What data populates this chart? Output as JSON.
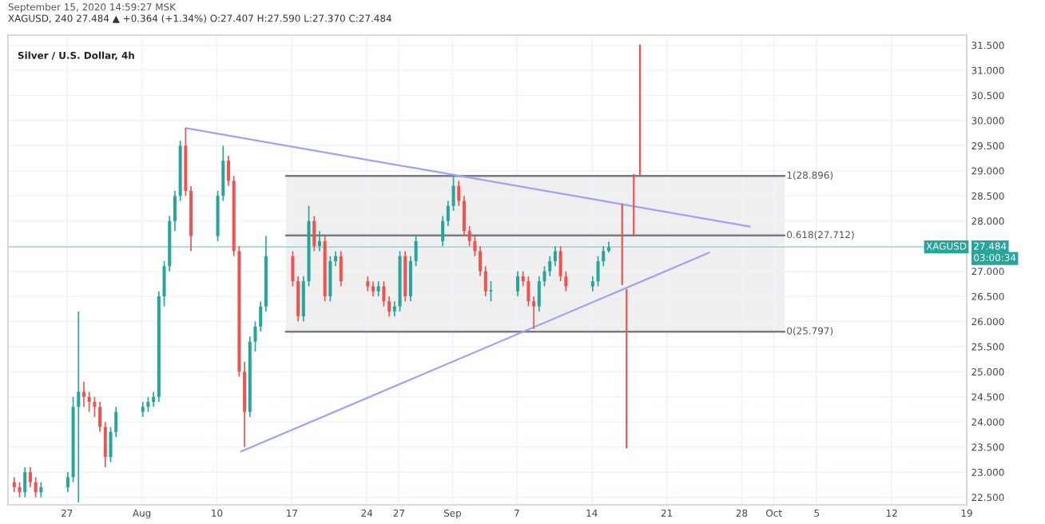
{
  "chart_data": {
    "type": "candlestick",
    "title": "Silver / U.S. Dollar, 4h",
    "subtitle": "XAGUSD, 240 27.484 ▲ +0.364 (+1.34%) O:27.407 H:27.590 L:27.370 C:27.484",
    "annotations": [
      "September 15, 2020 14:59:27 MSK",
      {
        "text": "XAGUSD",
        "x": "2020-10-19T00:00",
        "y": 27.484
      },
      "03:00:34"
    ],
    "x": [
      "2020-07-22T02:00",
      "2020-07-22T14:00",
      "2020-07-23T02:00",
      "2020-07-23T14:00",
      "2020-07-24T02:00",
      "2020-07-24T14:00",
      "2020-07-27T02:00",
      "2020-07-27T14:00",
      "2020-07-28T02:00",
      "2020-07-28T14:00",
      "2020-07-29T02:00",
      "2020-07-29T14:00",
      "2020-07-30T02:00",
      "2020-07-30T14:00",
      "2020-07-31T02:00",
      "2020-07-31T14:00",
      "2020-08-03T02:00",
      "2020-08-03T14:00",
      "2020-08-04T02:00",
      "2020-08-04T14:00",
      "2020-08-05T02:00",
      "2020-08-05T14:00",
      "2020-08-06T02:00",
      "2020-08-06T14:00",
      "2020-08-07T02:00",
      "2020-08-07T14:00",
      "2020-08-10T02:00",
      "2020-08-10T14:00",
      "2020-08-11T02:00",
      "2020-08-11T14:00",
      "2020-08-12T02:00",
      "2020-08-12T14:00",
      "2020-08-13T02:00",
      "2020-08-13T14:00",
      "2020-08-14T02:00",
      "2020-08-14T14:00",
      "2020-08-17T02:00",
      "2020-08-17T14:00",
      "2020-08-18T02:00",
      "2020-08-18T14:00",
      "2020-08-19T02:00",
      "2020-08-19T14:00",
      "2020-08-20T02:00",
      "2020-08-20T14:00",
      "2020-08-21T02:00",
      "2020-08-21T14:00",
      "2020-08-24T02:00",
      "2020-08-24T14:00",
      "2020-08-25T02:00",
      "2020-08-25T14:00",
      "2020-08-26T02:00",
      "2020-08-26T14:00",
      "2020-08-27T02:00",
      "2020-08-27T14:00",
      "2020-08-28T02:00",
      "2020-08-28T14:00",
      "2020-08-31T02:00",
      "2020-08-31T14:00",
      "2020-09-01T02:00",
      "2020-09-01T14:00",
      "2020-09-02T02:00",
      "2020-09-02T14:00",
      "2020-09-03T02:00",
      "2020-09-03T14:00",
      "2020-09-04T02:00",
      "2020-09-04T14:00",
      "2020-09-07T02:00",
      "2020-09-07T14:00",
      "2020-09-08T02:00",
      "2020-09-08T14:00",
      "2020-09-09T02:00",
      "2020-09-09T14:00",
      "2020-09-10T02:00",
      "2020-09-10T14:00",
      "2020-09-11T02:00",
      "2020-09-11T14:00",
      "2020-09-14T02:00",
      "2020-09-14T14:00",
      "2020-09-15T02:00",
      "2020-09-15T14:00"
    ],
    "ohlc": [
      [
        22.8,
        22.9,
        22.6,
        22.7
      ],
      [
        22.7,
        22.8,
        22.5,
        22.6
      ],
      [
        22.6,
        23.1,
        22.5,
        23.0
      ],
      [
        23.0,
        23.1,
        22.7,
        22.8
      ],
      [
        22.8,
        22.9,
        22.5,
        22.6
      ],
      [
        22.6,
        22.8,
        22.5,
        22.7
      ],
      [
        22.7,
        23.0,
        22.6,
        22.9
      ],
      [
        22.9,
        24.5,
        22.8,
        24.3
      ],
      [
        24.3,
        26.2,
        22.4,
        24.6
      ],
      [
        24.6,
        24.8,
        24.3,
        24.5
      ],
      [
        24.5,
        24.6,
        24.2,
        24.4
      ],
      [
        24.4,
        24.5,
        24.1,
        24.3
      ],
      [
        24.3,
        24.4,
        23.8,
        23.9
      ],
      [
        23.9,
        24.0,
        23.1,
        23.3
      ],
      [
        23.3,
        23.9,
        23.2,
        23.8
      ],
      [
        23.8,
        24.3,
        23.7,
        24.2
      ],
      [
        24.2,
        24.4,
        24.1,
        24.3
      ],
      [
        24.3,
        24.5,
        24.2,
        24.4
      ],
      [
        24.4,
        24.6,
        24.3,
        24.5
      ],
      [
        24.5,
        26.6,
        24.4,
        26.5
      ],
      [
        26.5,
        27.2,
        26.3,
        27.1
      ],
      [
        27.1,
        28.1,
        27.0,
        28.0
      ],
      [
        28.0,
        28.6,
        27.8,
        28.5
      ],
      [
        28.5,
        29.6,
        28.4,
        29.5
      ],
      [
        29.5,
        29.85,
        28.5,
        28.6
      ],
      [
        28.6,
        28.7,
        27.4,
        27.7
      ],
      [
        27.7,
        28.6,
        27.6,
        28.5
      ],
      [
        28.5,
        29.5,
        28.4,
        29.2
      ],
      [
        29.2,
        29.3,
        28.7,
        28.8
      ],
      [
        28.8,
        28.9,
        27.3,
        27.4
      ],
      [
        27.4,
        27.5,
        24.9,
        25.0
      ],
      [
        25.0,
        25.2,
        23.5,
        24.2
      ],
      [
        24.2,
        25.7,
        24.1,
        25.6
      ],
      [
        25.6,
        26.0,
        25.4,
        25.9
      ],
      [
        25.9,
        26.4,
        25.8,
        26.3
      ],
      [
        26.3,
        27.7,
        26.2,
        27.3
      ],
      [
        27.3,
        27.4,
        26.7,
        26.8
      ],
      [
        26.8,
        26.9,
        26.0,
        26.1
      ],
      [
        26.1,
        26.9,
        26.0,
        26.8
      ],
      [
        26.8,
        28.3,
        26.7,
        28.0
      ],
      [
        28.0,
        28.1,
        27.4,
        27.5
      ],
      [
        27.5,
        27.8,
        27.4,
        27.6
      ],
      [
        27.6,
        27.7,
        26.4,
        26.5
      ],
      [
        26.5,
        27.3,
        26.4,
        27.2
      ],
      [
        27.2,
        27.4,
        27.1,
        27.3
      ],
      [
        27.3,
        27.4,
        26.7,
        26.8
      ],
      [
        26.8,
        26.9,
        26.6,
        26.7
      ],
      [
        26.7,
        26.8,
        26.5,
        26.6
      ],
      [
        26.6,
        26.8,
        26.5,
        26.7
      ],
      [
        26.7,
        26.8,
        26.3,
        26.4
      ],
      [
        26.4,
        26.5,
        26.1,
        26.2
      ],
      [
        26.2,
        26.4,
        26.1,
        26.3
      ],
      [
        26.3,
        27.4,
        26.2,
        27.3
      ],
      [
        27.3,
        27.4,
        26.4,
        26.5
      ],
      [
        26.5,
        27.3,
        26.4,
        27.2
      ],
      [
        27.2,
        27.7,
        27.1,
        27.6
      ],
      [
        27.6,
        28.1,
        27.5,
        28.0
      ],
      [
        28.0,
        28.4,
        27.9,
        28.3
      ],
      [
        28.3,
        28.9,
        28.2,
        28.7
      ],
      [
        28.7,
        28.8,
        28.3,
        28.4
      ],
      [
        28.4,
        28.5,
        27.7,
        27.8
      ],
      [
        27.8,
        27.9,
        27.5,
        27.6
      ],
      [
        27.6,
        27.7,
        27.3,
        27.4
      ],
      [
        27.4,
        27.5,
        26.9,
        27.0
      ],
      [
        27.0,
        27.1,
        26.5,
        26.6
      ],
      [
        26.6,
        26.8,
        26.4,
        26.6
      ],
      [
        26.6,
        27.0,
        26.5,
        26.9
      ],
      [
        26.9,
        27.0,
        26.7,
        26.8
      ],
      [
        26.8,
        26.9,
        26.3,
        26.4
      ],
      [
        26.4,
        26.5,
        25.85,
        26.3
      ],
      [
        26.3,
        26.9,
        26.2,
        26.8
      ],
      [
        26.8,
        27.1,
        26.7,
        27.0
      ],
      [
        27.0,
        27.3,
        26.9,
        27.2
      ],
      [
        27.2,
        27.5,
        27.1,
        27.4
      ],
      [
        27.4,
        27.5,
        26.8,
        26.9
      ],
      [
        26.9,
        27.0,
        26.6,
        26.7
      ],
      [
        26.7,
        26.9,
        26.6,
        26.8
      ],
      [
        26.8,
        27.3,
        26.7,
        27.2
      ],
      [
        27.2,
        27.5,
        27.1,
        27.4
      ],
      [
        27.407,
        27.59,
        27.37,
        27.484
      ]
    ],
    "series": [
      {
        "type": "line",
        "color": "#9fa2f2",
        "x": [
          "2020-08-07T02:00",
          "2020-09-28T18:00"
        ],
        "values": [
          29.85,
          27.89
        ]
      },
      {
        "type": "line",
        "color": "#9fa2f2",
        "x": [
          "2020-08-12T06:00",
          "2020-09-24T23:00"
        ],
        "values": [
          23.41,
          27.37
        ]
      },
      {
        "type": "line",
        "color": "#ef5350",
        "x": [
          "2020-09-16T20:00",
          "2020-09-16T20:00"
        ],
        "values": [
          28.33,
          26.74
        ]
      },
      {
        "type": "line",
        "color": "#ef5350",
        "x": [
          "2020-09-17T06:00",
          "2020-09-17T06:00"
        ],
        "values": [
          26.63,
          23.49
        ]
      },
      {
        "type": "line",
        "color": "#ef5350",
        "x": [
          "2020-09-17T22:00",
          "2020-09-17T22:00"
        ],
        "values": [
          27.72,
          28.92
        ]
      },
      {
        "type": "line",
        "color": "#ef5350",
        "x": [
          "2020-09-18T12:00",
          "2020-09-18T12:00"
        ],
        "values": [
          28.92,
          31.5
        ]
      }
    ],
    "ref_lines": [
      {
        "axis": "y",
        "value": 28.896,
        "label": "1(28.896)",
        "color": "#787b86"
      },
      {
        "axis": "y",
        "value": 27.712,
        "label": "0.618(27.712)",
        "color": "#787b86"
      },
      {
        "axis": "y",
        "value": 25.797,
        "label": "0(25.797)",
        "color": "#787b86"
      },
      {
        "axis": "y",
        "value": 27.484,
        "label": "27.484",
        "color": "#26a69a"
      }
    ],
    "bands": [
      {
        "axis": "y",
        "from": 25.797,
        "to": 28.896,
        "color": "#efefef"
      }
    ],
    "xlim": [
      "2020-07-21T12:00",
      "2020-10-19T00:00"
    ],
    "xticks": [
      {
        "value": "2020-07-27",
        "label": "27"
      },
      {
        "value": "2020-08-03",
        "label": "Aug"
      },
      {
        "value": "2020-08-10",
        "label": "10"
      },
      {
        "value": "2020-08-17",
        "label": "17"
      },
      {
        "value": "2020-08-24",
        "label": "24"
      },
      {
        "value": "2020-08-27",
        "label": "27"
      },
      {
        "value": "2020-09-01",
        "label": "Sep"
      },
      {
        "value": "2020-09-07",
        "label": "7"
      },
      {
        "value": "2020-09-14",
        "label": "14"
      },
      {
        "value": "2020-09-21",
        "label": "21"
      },
      {
        "value": "2020-09-28",
        "label": "28"
      },
      {
        "value": "2020-10-01",
        "label": "Oct"
      },
      {
        "value": "2020-10-05",
        "label": "5"
      },
      {
        "value": "2020-10-12",
        "label": "12"
      },
      {
        "value": "2020-10-19",
        "label": "19"
      }
    ],
    "ylim": [
      22.35,
      31.7
    ],
    "yticks": [
      {
        "value": 22.5,
        "label": "22.500"
      },
      {
        "value": 23,
        "label": "23.000"
      },
      {
        "value": 23.5,
        "label": "23.500"
      },
      {
        "value": 24,
        "label": "24.000"
      },
      {
        "value": 24.5,
        "label": "24.500"
      },
      {
        "value": 25,
        "label": "25.000"
      },
      {
        "value": 25.5,
        "label": "25.500"
      },
      {
        "value": 26,
        "label": "26.000"
      },
      {
        "value": 26.5,
        "label": "26.500"
      },
      {
        "value": 27,
        "label": "27.000"
      },
      {
        "value": 27.5,
        "label": null
      },
      {
        "value": 28,
        "label": "28.000"
      },
      {
        "value": 28.5,
        "label": "28.500"
      },
      {
        "value": 29,
        "label": "29.000"
      },
      {
        "value": 29.5,
        "label": "29.500"
      },
      {
        "value": 30,
        "label": "30.000"
      },
      {
        "value": 30.5,
        "label": "30.500"
      },
      {
        "value": 31,
        "label": "31.000"
      },
      {
        "value": 31.5,
        "label": "31.500"
      }
    ],
    "grid": true
  }
}
